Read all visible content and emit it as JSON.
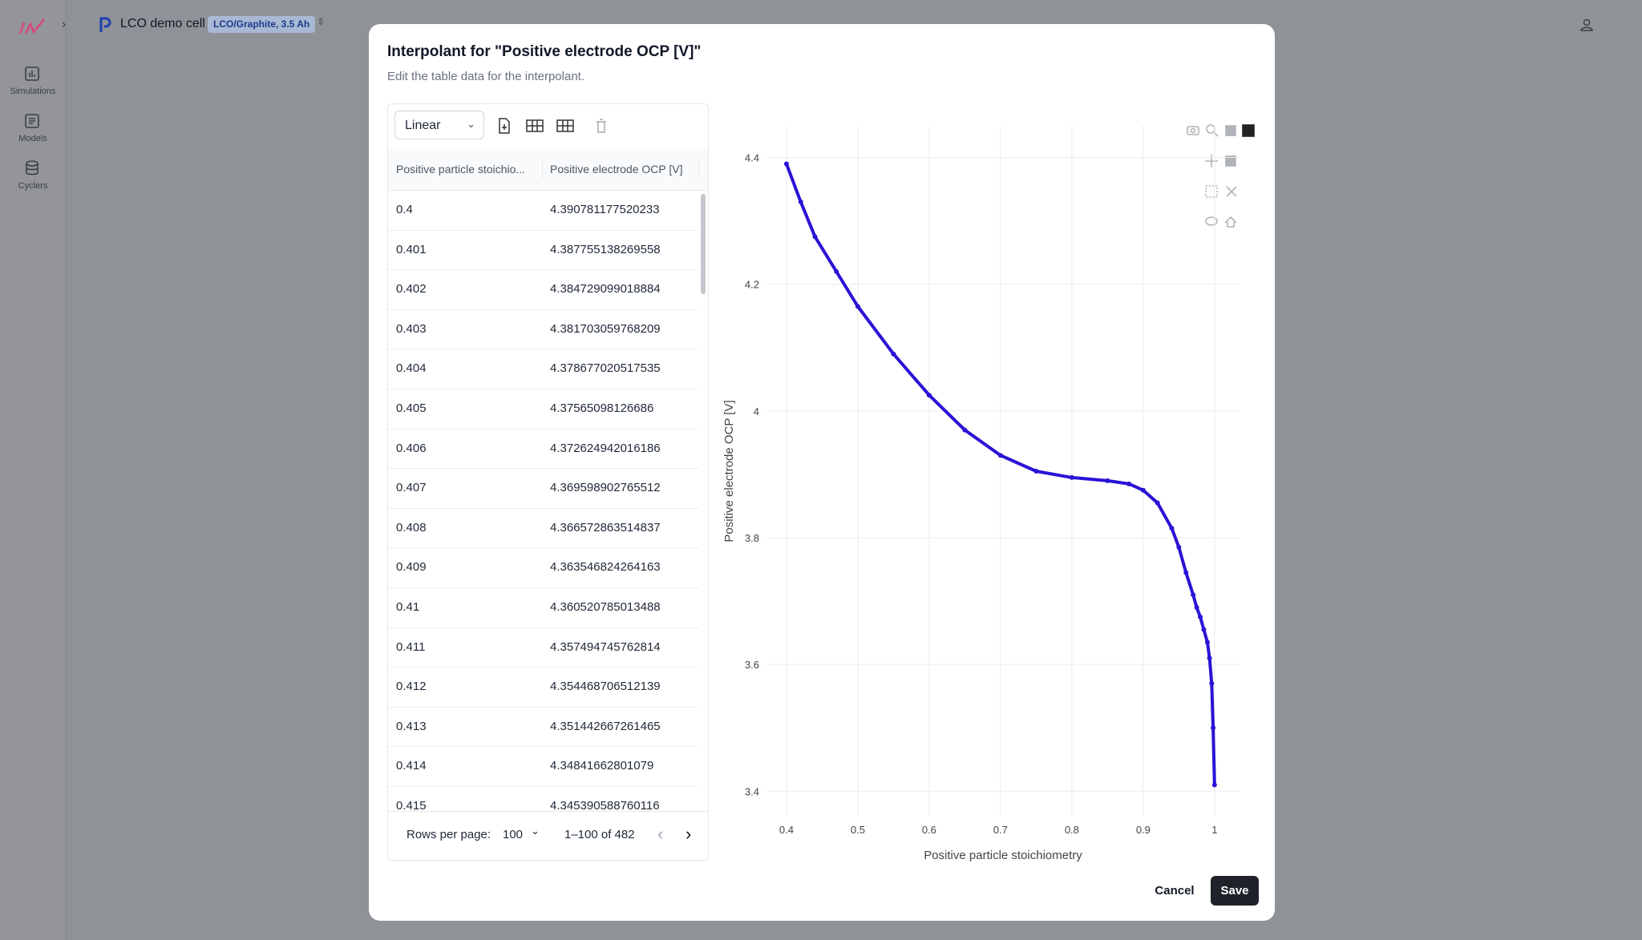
{
  "header": {
    "title": "LCO demo cell",
    "badge": "LCO/Graphite, 3.5 Ah"
  },
  "sidebar": {
    "items": [
      "Simulations",
      "Models",
      "Cyclers"
    ]
  },
  "dialog": {
    "title": "Interpolant for \"Positive electrode OCP [V]\"",
    "subtitle": "Edit the table data for the interpolant.",
    "interpolation": "Linear",
    "table": {
      "columns": [
        "Positive particle stoichio...",
        "Positive electrode OCP [V]"
      ],
      "rows": [
        [
          0.4,
          4.390781177520233
        ],
        [
          0.401,
          4.387755138269558
        ],
        [
          0.402,
          4.384729099018884
        ],
        [
          0.403,
          4.381703059768209
        ],
        [
          0.404,
          4.378677020517535
        ],
        [
          0.405,
          4.37565098126686
        ],
        [
          0.406,
          4.372624942016186
        ],
        [
          0.407,
          4.369598902765512
        ],
        [
          0.408,
          4.366572863514837
        ],
        [
          0.409,
          4.363546824264163
        ],
        [
          0.41,
          4.360520785013488
        ],
        [
          0.411,
          4.357494745762814
        ],
        [
          0.412,
          4.354468706512139
        ],
        [
          0.413,
          4.351442667261465
        ],
        [
          0.414,
          4.34841662801079
        ],
        [
          0.415,
          4.345390588760116
        ]
      ]
    },
    "pagination": {
      "rows_per_page_label": "Rows per page:",
      "rows_per_page": "100",
      "range": "1–100 of 482"
    },
    "buttons": {
      "cancel": "Cancel",
      "save": "Save"
    }
  },
  "chart_data": {
    "type": "line",
    "xlabel": "Positive particle stoichiometry",
    "ylabel": "Positive electrode OCP [V]",
    "color": "#2a12d6",
    "markers": true,
    "grid": true,
    "x": [
      0.4,
      0.42,
      0.44,
      0.47,
      0.5,
      0.55,
      0.6,
      0.65,
      0.7,
      0.75,
      0.8,
      0.85,
      0.88,
      0.9,
      0.92,
      0.94,
      0.95,
      0.96,
      0.97,
      0.975,
      0.98,
      0.985,
      0.99,
      0.993,
      0.996,
      0.998,
      1.0
    ],
    "values": [
      4.39,
      4.33,
      4.275,
      4.22,
      4.165,
      4.09,
      4.025,
      3.97,
      3.93,
      3.905,
      3.895,
      3.89,
      3.885,
      3.875,
      3.855,
      3.815,
      3.785,
      3.745,
      3.71,
      3.69,
      3.675,
      3.655,
      3.635,
      3.61,
      3.57,
      3.5,
      3.41
    ],
    "xlim": [
      0.372,
      1.035
    ],
    "ylim": [
      3.36,
      4.45
    ],
    "xticks": [
      0.4,
      0.5,
      0.6,
      0.7,
      0.8,
      0.9,
      1
    ],
    "yticks": [
      3.4,
      3.6,
      3.8,
      4,
      4.2,
      4.4
    ]
  }
}
